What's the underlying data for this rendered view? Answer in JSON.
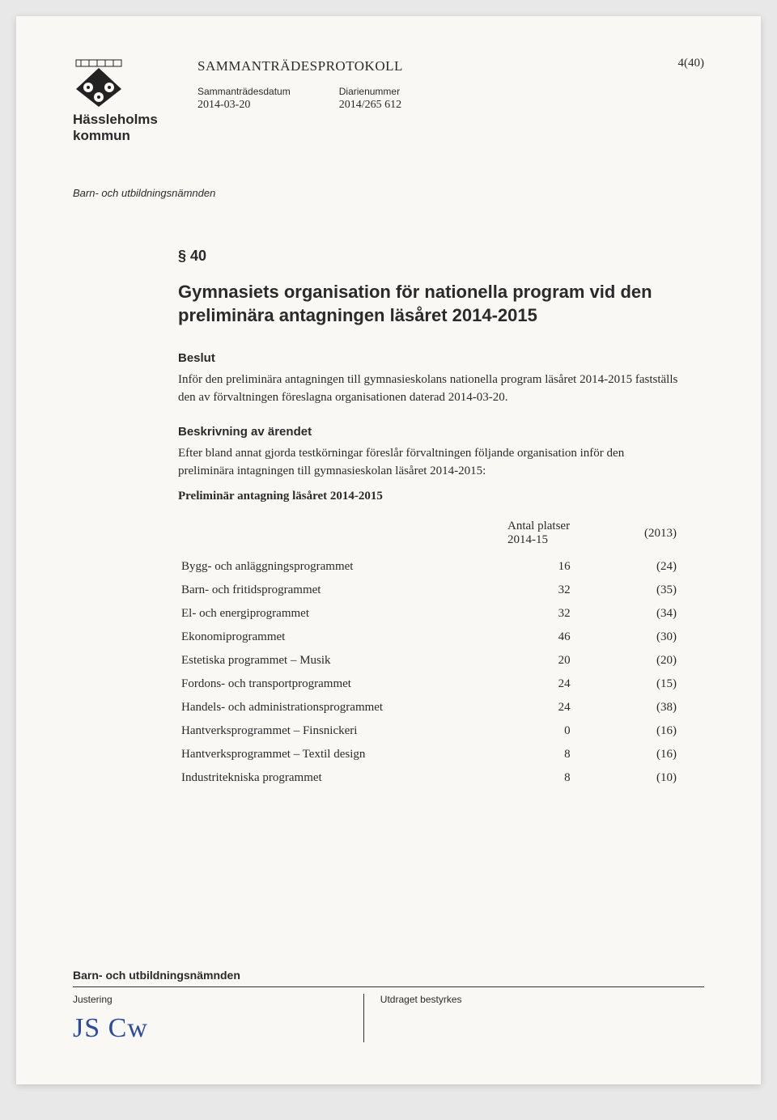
{
  "header": {
    "org_name_line1": "Hässleholms",
    "org_name_line2": "kommun",
    "doc_title": "SAMMANTRÄDESPROTOKOLL",
    "page_number": "4(40)",
    "meta": {
      "date_label": "Sammanträdesdatum",
      "date_value": "2014-03-20",
      "diary_label": "Diarienummer",
      "diary_value": "2014/265 612"
    },
    "committee": "Barn- och utbildningsnämnden"
  },
  "section": {
    "number": "§ 40",
    "headline": "Gymnasiets organisation för nationella program vid den preliminära antagningen läsåret 2014-2015",
    "beslut_label": "Beslut",
    "beslut_text": "Inför den preliminära antagningen till gymnasieskolans nationella program läsåret 2014-2015 fastställs den av förvaltningen föreslagna organisationen daterad 2014-03-20.",
    "beskrivning_label": "Beskrivning av ärendet",
    "beskrivning_text": "Efter bland annat gjorda testkörningar föreslår förvaltningen följande organisation inför den preliminära intagningen till gymnasieskolan läsåret 2014-2015:",
    "prelim_label": "Preliminär antagning läsåret 2014-2015"
  },
  "table": {
    "col_places": "Antal platser",
    "col_year": "2014-15",
    "col_prev": "(2013)",
    "rows": [
      {
        "name": "Bygg- och anläggningsprogrammet",
        "v": "16",
        "p": "(24)"
      },
      {
        "name": "Barn- och fritidsprogrammet",
        "v": "32",
        "p": "(35)"
      },
      {
        "name": "El- och energiprogrammet",
        "v": "32",
        "p": "(34)"
      },
      {
        "name": "Ekonomiprogrammet",
        "v": "46",
        "p": "(30)"
      },
      {
        "name": "Estetiska programmet – Musik",
        "v": "20",
        "p": "(20)"
      },
      {
        "name": "Fordons- och transportprogrammet",
        "v": "24",
        "p": "(15)"
      },
      {
        "name": "Handels- och administrationsprogrammet",
        "v": "24",
        "p": "(38)"
      },
      {
        "name": "Hantverksprogrammet – Finsnickeri",
        "v": "0",
        "p": "(16)"
      },
      {
        "name": "Hantverksprogrammet – Textil design",
        "v": "8",
        "p": "(16)"
      },
      {
        "name": "Industritekniska programmet",
        "v": "8",
        "p": "(10)"
      }
    ]
  },
  "footer": {
    "committee": "Barn- och utbildningsnämnden",
    "left_label": "Justering",
    "right_label": "Utdraget bestyrkes",
    "signature": "JS Cw"
  },
  "colors": {
    "text": "#2a2a2a",
    "page_bg": "#f9f8f5",
    "signature": "#2b4aa0",
    "rule": "#333333"
  }
}
